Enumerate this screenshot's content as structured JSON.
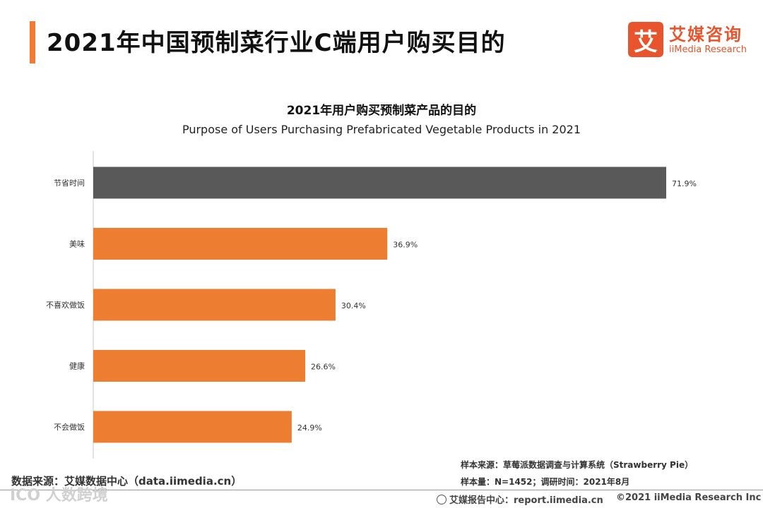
{
  "header": {
    "title": "2021年中国预制菜行业C端用户购买目的"
  },
  "logo": {
    "mark": "艾",
    "name_cn": "艾媒咨询",
    "name_en": "iiMedia Research"
  },
  "colors": {
    "accent": "#ed7d31",
    "highlight_bar": "#595959",
    "logo": "#e8552c"
  },
  "chart_data": {
    "type": "bar",
    "orientation": "horizontal",
    "title": "2021年用户购买预制菜产品的目的",
    "subtitle": "Purpose of Users Purchasing Prefabricated Vegetable Products in 2021",
    "categories": [
      "节省时间",
      "美味",
      "不喜欢做饭",
      "健康",
      "不会做饭"
    ],
    "values": [
      71.9,
      36.9,
      30.4,
      26.6,
      24.9
    ],
    "value_labels": [
      "71.9%",
      "36.9%",
      "30.4%",
      "26.6%",
      "24.9%"
    ],
    "highlight_index": 0,
    "xlim": [
      0,
      71.9
    ],
    "unit": "%",
    "grid": false,
    "legend": "none"
  },
  "footer": {
    "source": "数据来源：艾媒数据中心（data.iimedia.cn）",
    "sample_source": "样本来源：草莓派数据调查与计算系统（Strawberry Pie）",
    "sample_info": "样本量：N=1452；调研时间：2021年8月",
    "report_center": "艾媒报告中心：report.iimedia.cn",
    "copyright": "©2021  iiMedia Research  Inc",
    "watermark": "ICO 人数跨境"
  }
}
